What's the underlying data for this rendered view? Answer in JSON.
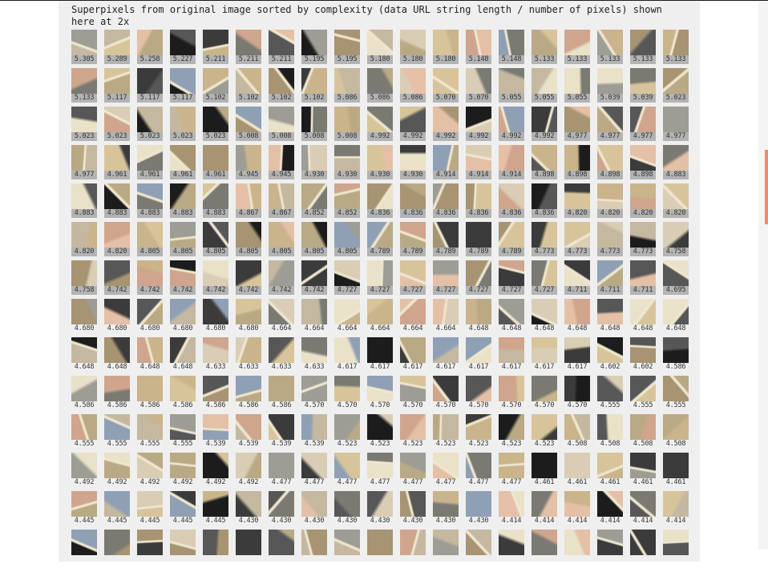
{
  "heading": "Superpixels from original image sorted by complexity (data URL string length / number of pixels) shown here at 2x",
  "colors": {
    "page_bg": "#ffffff",
    "panel_bg": "#efefef",
    "label_highlight": "#b3b3b3",
    "scroll_thumb": "#ef8a6b",
    "thumb_palette": [
      "#c9b48c",
      "#d7c49a",
      "#3b3b3b",
      "#1c1c1c",
      "#e4c0a6",
      "#a69472",
      "#7a7a72",
      "#c4b8a0",
      "#9d9d95",
      "#d9cdb5",
      "#575757",
      "#b9aa85",
      "#8fa0b4",
      "#e9e2c8",
      "#cfa58d"
    ]
  },
  "tiles_per_row": 19,
  "highlighted_rows": 7,
  "scores": [
    [
      "5.305",
      "5.289",
      "5.258",
      "5.227",
      "5.211",
      "5.211",
      "5.211",
      "5.195",
      "5.195",
      "5.180",
      "5.180",
      "5.180",
      "5.148",
      "5.148",
      "5.133",
      "5.133",
      "5.133",
      "5.133",
      "5.133"
    ],
    [
      "5.133",
      "5.117",
      "5.117",
      "5.117",
      "5.102",
      "5.102",
      "5.102",
      "5.102",
      "5.086",
      "5.086",
      "5.086",
      "5.070",
      "5.070",
      "5.055",
      "5.055",
      "5.055",
      "5.039",
      "5.039",
      "5.023"
    ],
    [
      "5.023",
      "5.023",
      "5.023",
      "5.023",
      "5.023",
      "5.008",
      "5.008",
      "5.008",
      "5.008",
      "4.992",
      "4.992",
      "4.992",
      "4.992",
      "4.992",
      "4.992",
      "4.977",
      "4.977",
      "4.977",
      "4.977"
    ],
    [
      "4.977",
      "4.961",
      "4.961",
      "4.961",
      "4.961",
      "4.945",
      "4.945",
      "4.930",
      "4.930",
      "4.930",
      "4.930",
      "4.914",
      "4.914",
      "4.914",
      "4.898",
      "4.898",
      "4.898",
      "4.898",
      "4.883"
    ],
    [
      "4.883",
      "4.883",
      "4.883",
      "4.883",
      "4.883",
      "4.867",
      "4.867",
      "4.852",
      "4.852",
      "4.836",
      "4.836",
      "4.836",
      "4.836",
      "4.836",
      "4.836",
      "4.820",
      "4.820",
      "4.820",
      "4.820"
    ],
    [
      "4.820",
      "4.820",
      "4.805",
      "4.805",
      "4.805",
      "4.805",
      "4.805",
      "4.805",
      "4.805",
      "4.789",
      "4.789",
      "4.789",
      "4.789",
      "4.789",
      "4.773",
      "4.773",
      "4.773",
      "4.773",
      "4.758"
    ],
    [
      "4.758",
      "4.742",
      "4.742",
      "4.742",
      "4.742",
      "4.742",
      "4.742",
      "4.742",
      "4.727",
      "4.727",
      "4.727",
      "4.727",
      "4.727",
      "4.727",
      "4.727",
      "4.711",
      "4.711",
      "4.711",
      "4.695"
    ],
    [
      "4.680",
      "4.680",
      "4.680",
      "4.680",
      "4.680",
      "4.680",
      "4.664",
      "4.664",
      "4.664",
      "4.664",
      "4.664",
      "4.664",
      "4.648",
      "4.648",
      "4.648",
      "4.648",
      "4.648",
      "4.648",
      "4.648"
    ],
    [
      "4.648",
      "4.648",
      "4.648",
      "4.648",
      "4.633",
      "4.633",
      "4.633",
      "4.633",
      "4.617",
      "4.617",
      "4.617",
      "4.617",
      "4.617",
      "4.617",
      "4.617",
      "4.617",
      "4.602",
      "4.602",
      "4.586"
    ],
    [
      "4.586",
      "4.586",
      "4.586",
      "4.586",
      "4.586",
      "4.586",
      "4.586",
      "4.570",
      "4.570",
      "4.570",
      "4.570",
      "4.570",
      "4.570",
      "4.570",
      "4.570",
      "4.570",
      "4.555",
      "4.555",
      "4.555"
    ],
    [
      "4.555",
      "4.555",
      "4.555",
      "4.555",
      "4.539",
      "4.539",
      "4.539",
      "4.539",
      "4.523",
      "4.523",
      "4.523",
      "4.523",
      "4.523",
      "4.523",
      "4.523",
      "4.508",
      "4.508",
      "4.508",
      "4.508"
    ],
    [
      "4.492",
      "4.492",
      "4.492",
      "4.492",
      "4.492",
      "4.492",
      "4.477",
      "4.477",
      "4.477",
      "4.477",
      "4.477",
      "4.477",
      "4.477",
      "4.477",
      "4.461",
      "4.461",
      "4.461",
      "4.461",
      "4.461"
    ],
    [
      "4.445",
      "4.445",
      "4.445",
      "4.445",
      "4.445",
      "4.430",
      "4.430",
      "4.430",
      "4.430",
      "4.430",
      "4.430",
      "4.430",
      "4.430",
      "4.414",
      "4.414",
      "4.414",
      "4.414",
      "4.414",
      "4.414"
    ],
    [
      "",
      "",
      "",
      "",
      "",
      "",
      "",
      "",
      "",
      "",
      "",
      "",
      "",
      "",
      "",
      "",
      "",
      "",
      ""
    ]
  ]
}
